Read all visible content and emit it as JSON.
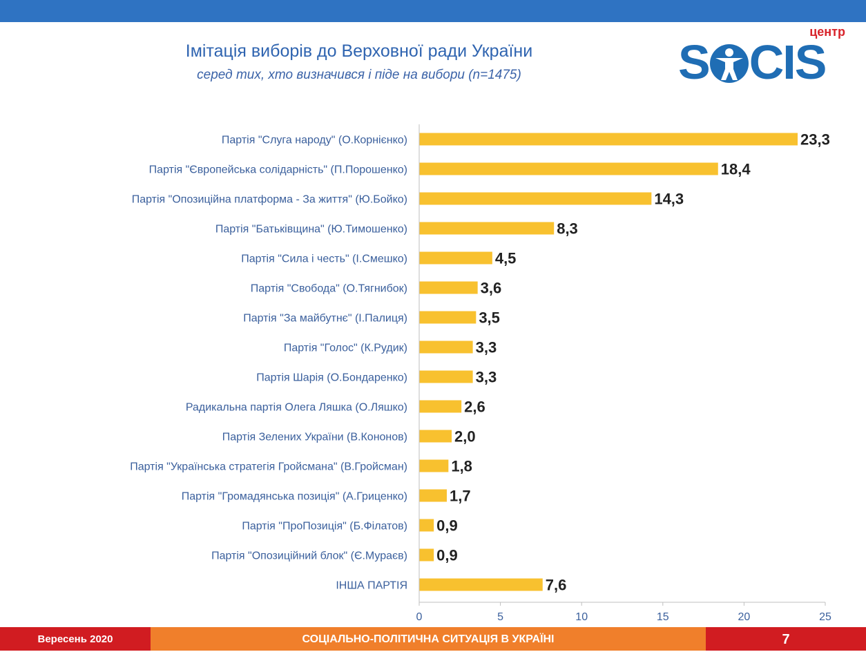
{
  "header": {
    "title": "Імітація виборів до Верховної ради України",
    "subtitle": "серед тих, хто визначився і піде на вибори (n=1475)"
  },
  "logo": {
    "tag": "центр",
    "word_left": "S",
    "word_right": "CIS"
  },
  "footer": {
    "date": "Вересень 2020",
    "topic": "СОЦІАЛЬНО-ПОЛІТИЧНА СИТУАЦІЯ В УКРАЇНІ",
    "page": "7"
  },
  "colors": {
    "bar": "#f8c12f",
    "label": "#3a5f9c",
    "value": "#222222",
    "axis": "#bfbfbf",
    "brand_blue": "#2f73c2",
    "footer_red": "#d11c21",
    "footer_orange": "#f07f2b"
  },
  "chart_data": {
    "type": "bar",
    "orientation": "horizontal",
    "title": "Імітація виборів до Верховної ради України",
    "subtitle": "серед тих, хто визначився і піде на вибори (n=1475)",
    "xlim": [
      0,
      25
    ],
    "xticks": [
      0,
      5,
      10,
      15,
      20,
      25
    ],
    "grid": false,
    "legend": "none",
    "categories": [
      "Партія \"Слуга народу\" (О.Корнієнко)",
      "Партія \"Європейська солідарність\" (П.Порошенко)",
      "Партія \"Опозиційна платформа - За життя\" (Ю.Бойко)",
      "Партія \"Батьківщина\" (Ю.Тимошенко)",
      "Партія \"Сила і честь\" (І.Смешко)",
      "Партія \"Свобода\" (О.Тягнибок)",
      "Партія \"За майбутнє\" (І.Палиця)",
      "Партія \"Голос\" (К.Рудик)",
      "Партія Шарія (О.Бондаренко)",
      "Радикальна партія Олега Ляшка (О.Ляшко)",
      "Партія Зелених України (В.Кононов)",
      "Партія \"Українська стратегія Гройсмана\" (В.Гройсман)",
      "Партія \"Громадянська позиція\" (А.Гриценко)",
      "Партія \"ПроПозиція\" (Б.Філатов)",
      "Партія \"Опозиційний блок\" (Є.Мураєв)",
      "ІНША ПАРТІЯ"
    ],
    "values": [
      23.3,
      18.4,
      14.3,
      8.3,
      4.5,
      3.6,
      3.5,
      3.3,
      3.3,
      2.6,
      2.0,
      1.8,
      1.7,
      0.9,
      0.9,
      7.6
    ],
    "value_labels": [
      "23,3",
      "18,4",
      "14,3",
      "8,3",
      "4,5",
      "3,6",
      "3,5",
      "3,3",
      "3,3",
      "2,6",
      "2,0",
      "1,8",
      "1,7",
      "0,9",
      "0,9",
      "7,6"
    ]
  }
}
